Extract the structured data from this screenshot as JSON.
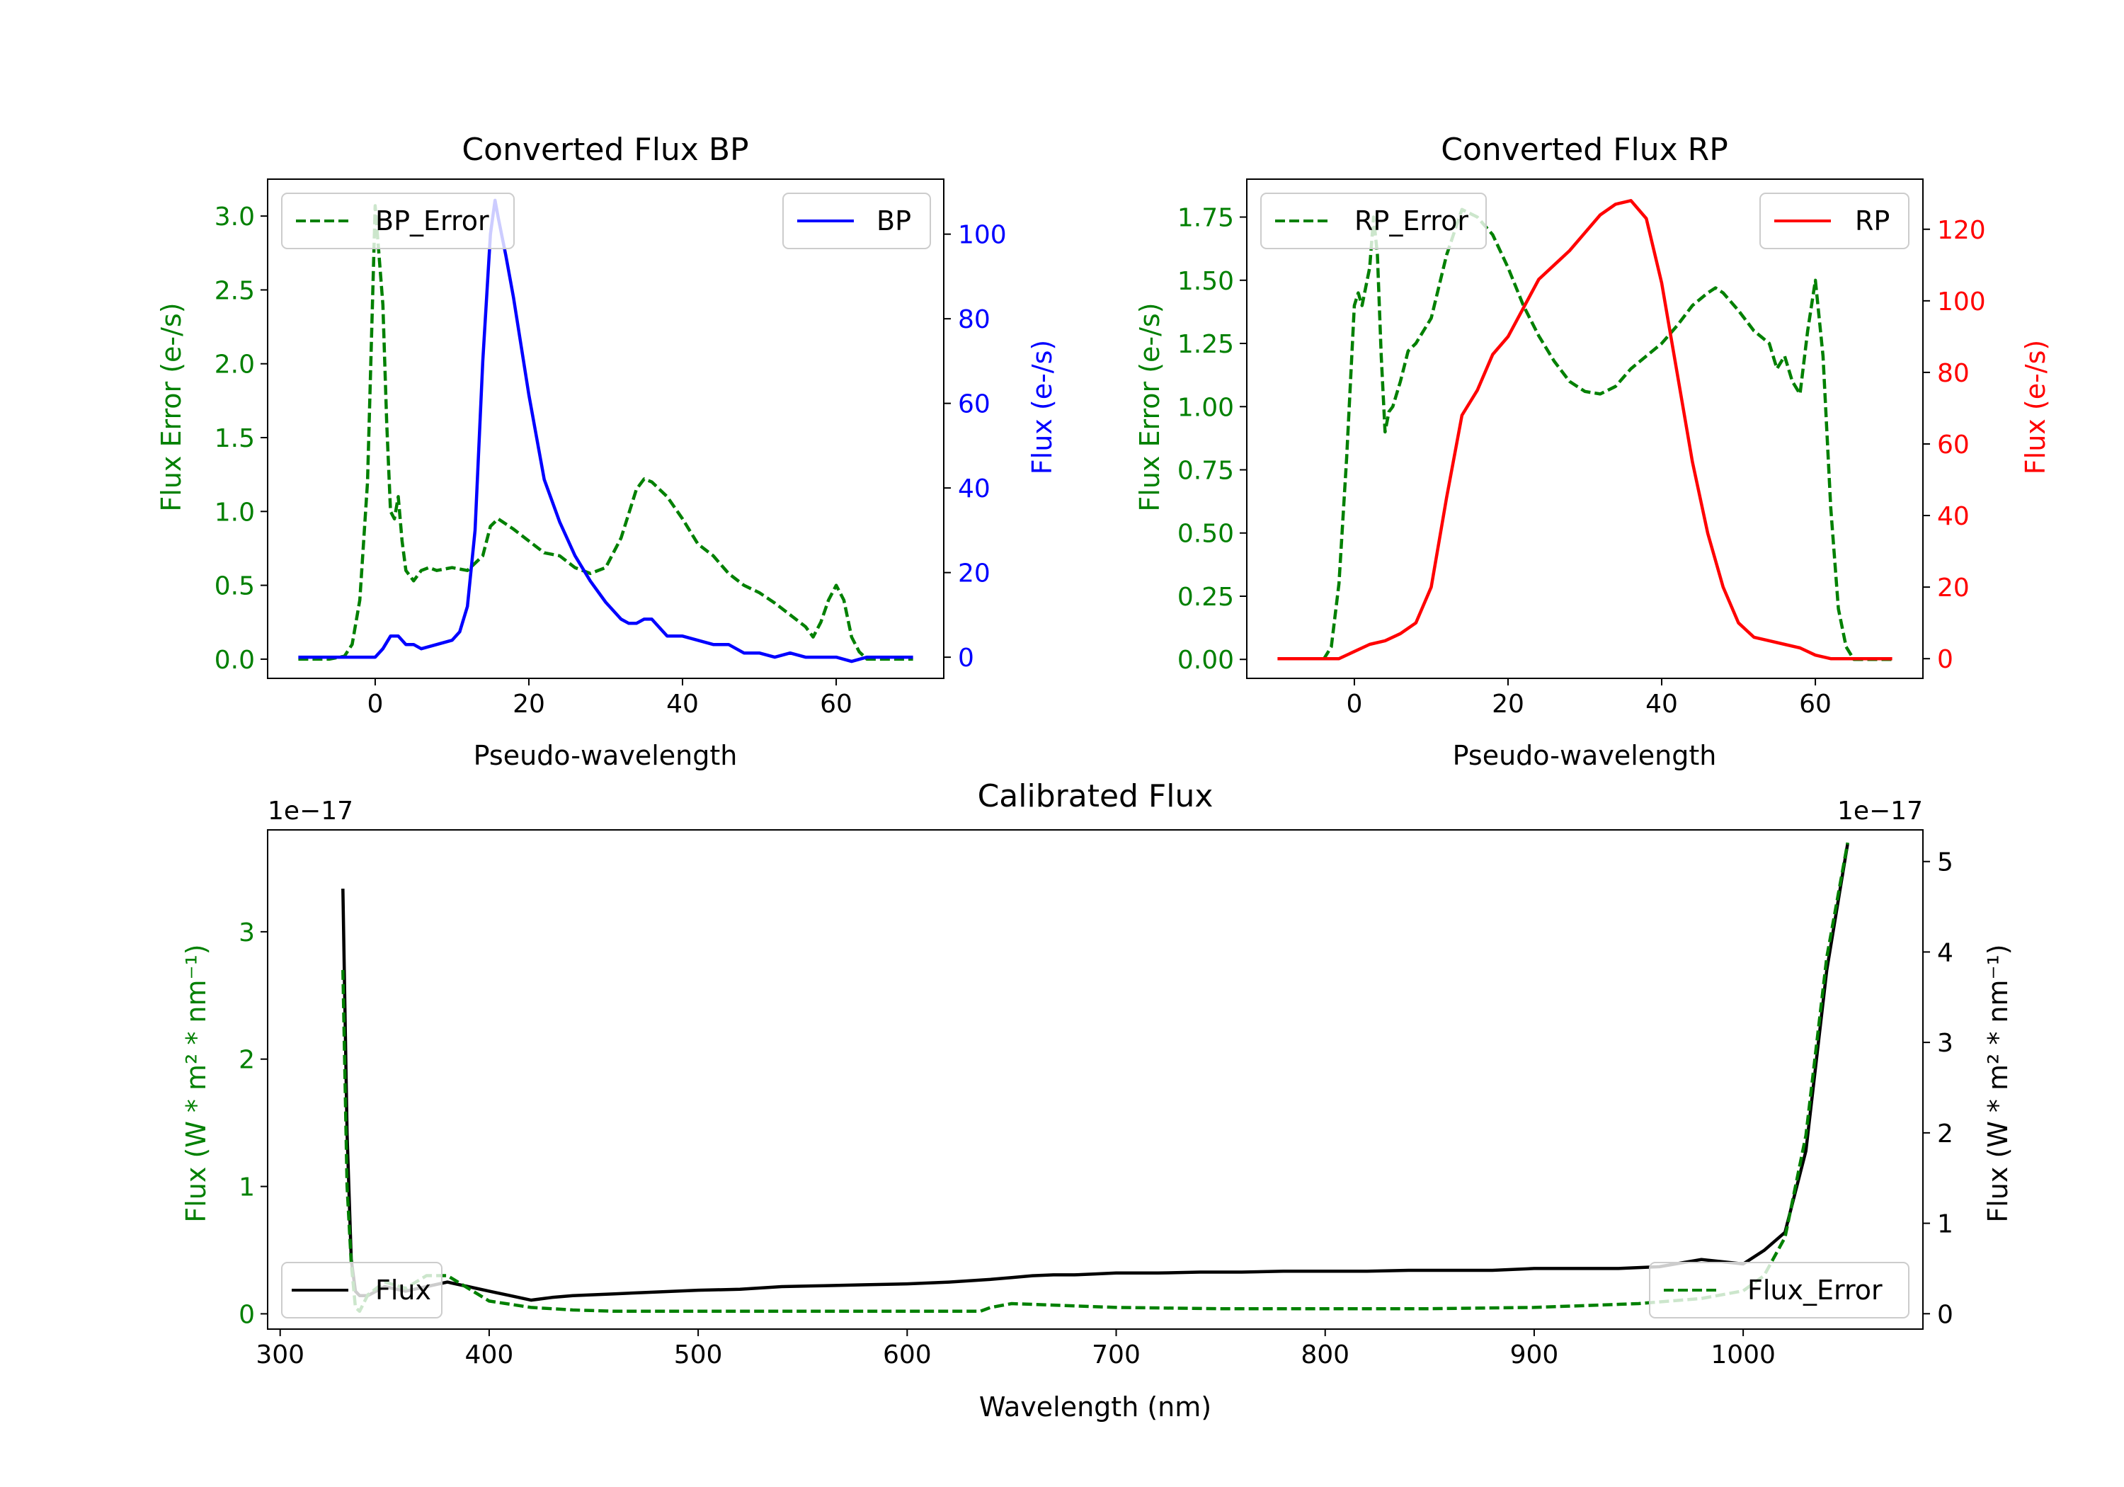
{
  "colors": {
    "green": "#008000",
    "blue": "#0000ff",
    "red": "#ff0000",
    "black": "#000000"
  },
  "chart_data": [
    {
      "type": "line",
      "title": "Converted Flux BP",
      "xlabel": "Pseudo-wavelength",
      "ylabel_left": "Flux Error (e-/s)",
      "ylabel_right": "Flux (e-/s)",
      "xlim": [
        -14,
        74
      ],
      "ylim_left": [
        -0.13,
        3.25
      ],
      "ylim_right": [
        -5,
        113
      ],
      "xticks": [
        0,
        20,
        40,
        60
      ],
      "yticks_left": [
        0.0,
        0.5,
        1.0,
        1.5,
        2.0,
        2.5,
        3.0
      ],
      "yticks_right": [
        0,
        20,
        40,
        60,
        80,
        100
      ],
      "legend_left": "BP_Error",
      "legend_right": "BP",
      "series": [
        {
          "name": "BP_Error",
          "axis": "left",
          "style": "dashed",
          "color": "#008000",
          "x": [
            -10,
            -6,
            -4,
            -3,
            -2,
            -1,
            0,
            1,
            1.5,
            2,
            2.5,
            3,
            3.5,
            4,
            5,
            6,
            7,
            8,
            10,
            12,
            14,
            15,
            16,
            18,
            20,
            22,
            24,
            26,
            28,
            30,
            32,
            34,
            35,
            36,
            38,
            40,
            42,
            44,
            46,
            48,
            50,
            52,
            54,
            56,
            57,
            58,
            59,
            60,
            61,
            62,
            63,
            64,
            66,
            70
          ],
          "values": [
            0.0,
            0.0,
            0.02,
            0.1,
            0.4,
            1.2,
            3.07,
            2.4,
            1.6,
            1.0,
            0.95,
            1.1,
            0.8,
            0.6,
            0.53,
            0.6,
            0.62,
            0.6,
            0.62,
            0.6,
            0.7,
            0.9,
            0.95,
            0.88,
            0.8,
            0.72,
            0.7,
            0.62,
            0.58,
            0.62,
            0.82,
            1.15,
            1.22,
            1.2,
            1.1,
            0.95,
            0.78,
            0.7,
            0.58,
            0.5,
            0.45,
            0.38,
            0.3,
            0.22,
            0.15,
            0.25,
            0.4,
            0.5,
            0.4,
            0.15,
            0.05,
            0.0,
            0.0,
            0.0
          ]
        },
        {
          "name": "BP",
          "axis": "right",
          "style": "solid",
          "color": "#0000ff",
          "x": [
            -10,
            -5,
            0,
            1,
            2,
            3,
            4,
            5,
            6,
            8,
            10,
            11,
            12,
            13,
            14,
            15,
            15.6,
            16,
            17,
            18,
            20,
            22,
            24,
            26,
            28,
            30,
            32,
            33,
            34,
            35,
            36,
            38,
            40,
            44,
            46,
            48,
            50,
            52,
            54,
            56,
            58,
            60,
            62,
            64,
            66,
            70
          ],
          "values": [
            0,
            0,
            0,
            2,
            5,
            5,
            3,
            3,
            2,
            3,
            4,
            6,
            12,
            30,
            70,
            100,
            108,
            104,
            95,
            85,
            62,
            42,
            32,
            24,
            18,
            13,
            9,
            8,
            8,
            9,
            9,
            5,
            5,
            3,
            3,
            1,
            1,
            0,
            1,
            0,
            0,
            0,
            -1,
            0,
            0,
            0
          ]
        }
      ]
    },
    {
      "type": "line",
      "title": "Converted Flux RP",
      "xlabel": "Pseudo-wavelength",
      "ylabel_left": "Flux Error (e-/s)",
      "ylabel_right": "Flux (e-/s)",
      "xlim": [
        -14,
        74
      ],
      "ylim_left": [
        -0.075,
        1.9
      ],
      "ylim_right": [
        -5.5,
        134
      ],
      "xticks": [
        0,
        20,
        40,
        60
      ],
      "yticks_left": [
        0.0,
        0.25,
        0.5,
        0.75,
        1.0,
        1.25,
        1.5,
        1.75
      ],
      "yticks_right": [
        0,
        20,
        40,
        60,
        80,
        100,
        120
      ],
      "legend_left": "RP_Error",
      "legend_right": "RP",
      "series": [
        {
          "name": "RP_Error",
          "axis": "left",
          "style": "dashed",
          "color": "#008000",
          "x": [
            -4,
            -3,
            -2,
            -1,
            0,
            0.5,
            1,
            2,
            2.5,
            3,
            3.5,
            4,
            4.5,
            5,
            6,
            7,
            8,
            10,
            12,
            14,
            16,
            18,
            20,
            22,
            24,
            26,
            28,
            30,
            32,
            34,
            36,
            38,
            40,
            42,
            44,
            46,
            47,
            48,
            50,
            52,
            54,
            55,
            56,
            57,
            58,
            59,
            60,
            61,
            62,
            63,
            64,
            65,
            70
          ],
          "values": [
            0.0,
            0.05,
            0.3,
            0.8,
            1.4,
            1.45,
            1.4,
            1.55,
            1.75,
            1.6,
            1.2,
            0.9,
            0.98,
            1.0,
            1.1,
            1.22,
            1.25,
            1.35,
            1.6,
            1.78,
            1.75,
            1.68,
            1.55,
            1.4,
            1.28,
            1.18,
            1.1,
            1.06,
            1.05,
            1.08,
            1.15,
            1.2,
            1.25,
            1.32,
            1.4,
            1.45,
            1.47,
            1.45,
            1.38,
            1.3,
            1.25,
            1.15,
            1.2,
            1.1,
            1.05,
            1.3,
            1.5,
            1.2,
            0.6,
            0.2,
            0.05,
            0.0,
            0.0
          ]
        },
        {
          "name": "RP",
          "axis": "right",
          "style": "solid",
          "color": "#ff0000",
          "x": [
            -10,
            -5,
            -2,
            0,
            2,
            4,
            6,
            8,
            10,
            12,
            14,
            16,
            18,
            20,
            22,
            24,
            26,
            28,
            30,
            32,
            34,
            36,
            38,
            40,
            42,
            44,
            46,
            48,
            50,
            52,
            54,
            56,
            58,
            60,
            62,
            66,
            70
          ],
          "values": [
            0,
            0,
            0,
            2,
            4,
            5,
            7,
            10,
            20,
            45,
            68,
            75,
            85,
            90,
            98,
            106,
            110,
            114,
            119,
            124,
            127,
            128,
            123,
            105,
            80,
            55,
            35,
            20,
            10,
            6,
            5,
            4,
            3,
            1,
            0,
            0,
            0
          ]
        }
      ]
    },
    {
      "type": "line",
      "title": "Calibrated Flux",
      "xlabel": "Wavelength (nm)",
      "ylabel_left": "Flux (W * m² * nm⁻¹)",
      "ylabel_right": "Flux (W * m² * nm⁻¹)",
      "offset_left": "1e−17",
      "offset_right": "1e−17",
      "xlim": [
        294,
        1086
      ],
      "ylim_left": [
        -0.12,
        3.8
      ],
      "ylim_right": [
        -0.17,
        5.35
      ],
      "xticks": [
        300,
        400,
        500,
        600,
        700,
        800,
        900,
        1000
      ],
      "yticks_left": [
        0,
        1,
        2,
        3
      ],
      "yticks_right": [
        0,
        1,
        2,
        3,
        4,
        5
      ],
      "legend_left": "Flux",
      "legend_right": "Flux_Error",
      "series": [
        {
          "name": "Flux",
          "axis": "right",
          "style": "solid",
          "color": "#000000",
          "x": [
            330,
            332,
            334,
            336,
            338,
            342,
            350,
            360,
            370,
            380,
            390,
            400,
            410,
            420,
            430,
            440,
            460,
            480,
            500,
            520,
            540,
            560,
            580,
            600,
            620,
            640,
            650,
            660,
            670,
            680,
            690,
            700,
            720,
            740,
            760,
            780,
            800,
            820,
            840,
            860,
            880,
            900,
            920,
            940,
            960,
            980,
            1000,
            1010,
            1020,
            1030,
            1040,
            1050
          ],
          "values": [
            4.7,
            2.0,
            0.6,
            0.25,
            0.2,
            0.2,
            0.3,
            0.25,
            0.3,
            0.35,
            0.3,
            0.25,
            0.2,
            0.15,
            0.18,
            0.2,
            0.22,
            0.24,
            0.26,
            0.27,
            0.3,
            0.31,
            0.32,
            0.33,
            0.35,
            0.38,
            0.4,
            0.42,
            0.43,
            0.43,
            0.44,
            0.45,
            0.45,
            0.46,
            0.46,
            0.47,
            0.47,
            0.47,
            0.48,
            0.48,
            0.48,
            0.5,
            0.5,
            0.5,
            0.52,
            0.6,
            0.55,
            0.7,
            0.9,
            1.8,
            3.8,
            5.2
          ]
        },
        {
          "name": "Flux_Error",
          "axis": "left",
          "style": "dashed",
          "color": "#008000",
          "x": [
            330,
            332,
            334,
            336,
            338,
            342,
            350,
            360,
            370,
            380,
            390,
            400,
            420,
            440,
            460,
            500,
            550,
            600,
            635,
            640,
            650,
            700,
            750,
            800,
            850,
            900,
            950,
            980,
            1000,
            1010,
            1020,
            1030,
            1040,
            1050
          ],
          "values": [
            2.7,
            1.0,
            0.4,
            0.05,
            0.02,
            0.15,
            0.25,
            0.2,
            0.3,
            0.3,
            0.2,
            0.1,
            0.05,
            0.03,
            0.02,
            0.02,
            0.02,
            0.02,
            0.02,
            0.05,
            0.08,
            0.05,
            0.04,
            0.04,
            0.04,
            0.05,
            0.08,
            0.12,
            0.18,
            0.3,
            0.6,
            1.4,
            2.8,
            3.7
          ]
        }
      ]
    }
  ]
}
